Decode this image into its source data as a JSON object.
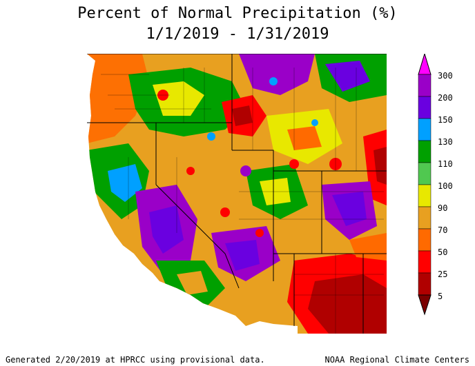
{
  "title": {
    "line1": "Percent of Normal Precipitation (%)",
    "line2": "1/1/2019 - 1/31/2019"
  },
  "legend": {
    "bins": [
      {
        "label": "300",
        "color": "#ff00ff"
      },
      {
        "label": "200",
        "color": "#9a00c8"
      },
      {
        "label": "150",
        "color": "#6a00e0"
      },
      {
        "label": "130",
        "color": "#00a0ff"
      },
      {
        "label": "110",
        "color": "#00a000"
      },
      {
        "label": "100",
        "color": "#50c850"
      },
      {
        "label": "90",
        "color": "#e8e800"
      },
      {
        "label": "70",
        "color": "#e8a020"
      },
      {
        "label": "50",
        "color": "#ff6a00"
      },
      {
        "label": "25",
        "color": "#ff0000"
      },
      {
        "label": "5",
        "color": "#b00000"
      }
    ]
  },
  "footer": {
    "left": "Generated 2/20/2019 at HPRCC using provisional data.",
    "right": "NOAA Regional Climate Centers"
  }
}
